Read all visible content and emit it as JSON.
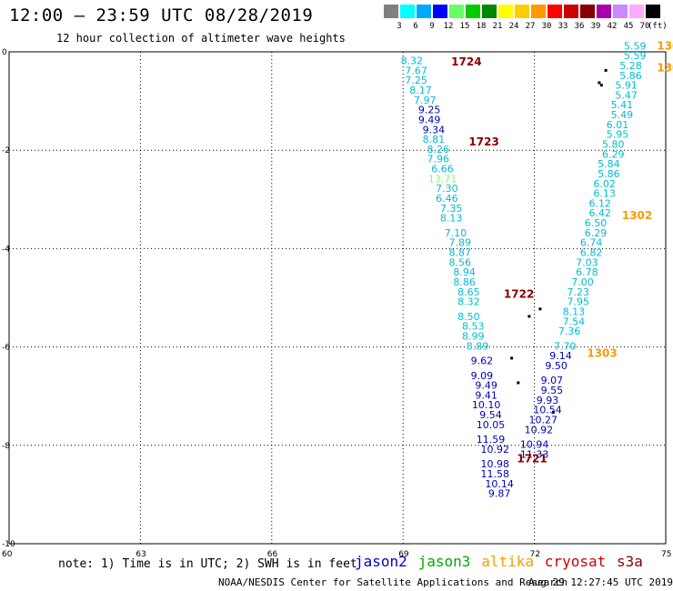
{
  "title": "12:00 – 23:59 UTC 08/28/2019",
  "subtitle": "12 hour collection of altimeter wave heights",
  "legend": {
    "unit": "(ft)",
    "swatches": [
      {
        "color": "#808080",
        "label": "3"
      },
      {
        "color": "#00ffff",
        "label": "6"
      },
      {
        "color": "#00a8ff",
        "label": "9"
      },
      {
        "color": "#0000ff",
        "label": "12"
      },
      {
        "color": "#66ff66",
        "label": "15"
      },
      {
        "color": "#00cc00",
        "label": "18"
      },
      {
        "color": "#008800",
        "label": "21"
      },
      {
        "color": "#ffff00",
        "label": "24"
      },
      {
        "color": "#ffcc00",
        "label": "27"
      },
      {
        "color": "#ff9900",
        "label": "30"
      },
      {
        "color": "#ff0000",
        "label": "33"
      },
      {
        "color": "#cc0000",
        "label": "36"
      },
      {
        "color": "#880000",
        "label": "39"
      },
      {
        "color": "#aa00aa",
        "label": "42"
      },
      {
        "color": "#cc88ff",
        "label": "45"
      },
      {
        "color": "#ffaaff",
        "label": "70"
      },
      {
        "color": "#000000",
        "label": ""
      }
    ]
  },
  "axes": {
    "lon_ticks": [
      60,
      63,
      66,
      69,
      72,
      75
    ],
    "lat_ticks": [
      0,
      -2,
      -4,
      -6,
      -8,
      -10
    ]
  },
  "colors": {
    "light": "#00bcd4",
    "dark": "#0000b4",
    "green": "#80ff66",
    "time_dark": "#880000",
    "time_orange": "#ff9900"
  },
  "tracks": [
    {
      "name": "track-west",
      "values": [
        {
          "lon": 69.2,
          "lat": -0.25,
          "v": "8.32",
          "c": "light"
        },
        {
          "lon": 69.3,
          "lat": -0.45,
          "v": "7.67",
          "c": "light"
        },
        {
          "lon": 69.3,
          "lat": -0.65,
          "v": "7.25",
          "c": "light"
        },
        {
          "lon": 69.4,
          "lat": -0.85,
          "v": "8.17",
          "c": "light"
        },
        {
          "lon": 69.5,
          "lat": -1.05,
          "v": "7.97",
          "c": "light"
        },
        {
          "lon": 69.6,
          "lat": -1.25,
          "v": "9.25",
          "c": "dark"
        },
        {
          "lon": 69.6,
          "lat": -1.45,
          "v": "9.49",
          "c": "dark"
        },
        {
          "lon": 69.7,
          "lat": -1.65,
          "v": "9.34",
          "c": "dark"
        },
        {
          "lon": 69.7,
          "lat": -1.85,
          "v": "8.81",
          "c": "light"
        },
        {
          "lon": 69.8,
          "lat": -2.05,
          "v": "8.26",
          "c": "light"
        },
        {
          "lon": 69.8,
          "lat": -2.25,
          "v": "7.96",
          "c": "light"
        },
        {
          "lon": 69.9,
          "lat": -2.45,
          "v": "6.66",
          "c": "light"
        },
        {
          "lon": 69.9,
          "lat": -2.65,
          "v": "13.71",
          "c": "green"
        },
        {
          "lon": 70.0,
          "lat": -2.85,
          "v": "7.30",
          "c": "light"
        },
        {
          "lon": 70.0,
          "lat": -3.05,
          "v": "6.46",
          "c": "light"
        },
        {
          "lon": 70.1,
          "lat": -3.25,
          "v": "7.35",
          "c": "light"
        },
        {
          "lon": 70.1,
          "lat": -3.45,
          "v": "8.13",
          "c": "light"
        },
        {
          "lon": 70.2,
          "lat": -3.75,
          "v": "7.10",
          "c": "light"
        },
        {
          "lon": 70.3,
          "lat": -3.95,
          "v": "7.89",
          "c": "light"
        },
        {
          "lon": 70.3,
          "lat": -4.15,
          "v": "8.87",
          "c": "light"
        },
        {
          "lon": 70.3,
          "lat": -4.35,
          "v": "8.56",
          "c": "light"
        },
        {
          "lon": 70.4,
          "lat": -4.55,
          "v": "8.94",
          "c": "light"
        },
        {
          "lon": 70.4,
          "lat": -4.75,
          "v": "8.86",
          "c": "light"
        },
        {
          "lon": 70.5,
          "lat": -4.95,
          "v": "8.65",
          "c": "light"
        },
        {
          "lon": 70.5,
          "lat": -5.15,
          "v": "8.32",
          "c": "light"
        },
        {
          "lon": 70.5,
          "lat": -5.45,
          "v": "8.50",
          "c": "light"
        },
        {
          "lon": 70.6,
          "lat": -5.65,
          "v": "8.53",
          "c": "light"
        },
        {
          "lon": 70.6,
          "lat": -5.85,
          "v": "8.99",
          "c": "light"
        },
        {
          "lon": 70.7,
          "lat": -6.05,
          "v": "8.89",
          "c": "light"
        },
        {
          "lon": 70.8,
          "lat": -6.35,
          "v": "9.62",
          "c": "dark"
        },
        {
          "lon": 70.8,
          "lat": -6.65,
          "v": "9.09",
          "c": "dark"
        },
        {
          "lon": 70.9,
          "lat": -6.85,
          "v": "9.49",
          "c": "dark"
        },
        {
          "lon": 70.9,
          "lat": -7.05,
          "v": "9.41",
          "c": "dark"
        },
        {
          "lon": 70.9,
          "lat": -7.25,
          "v": "10.10",
          "c": "dark"
        },
        {
          "lon": 71.0,
          "lat": -7.45,
          "v": "9.54",
          "c": "dark"
        },
        {
          "lon": 71.0,
          "lat": -7.65,
          "v": "10.05",
          "c": "dark"
        },
        {
          "lon": 71.0,
          "lat": -7.95,
          "v": "11.59",
          "c": "dark"
        },
        {
          "lon": 71.1,
          "lat": -8.15,
          "v": "10.92",
          "c": "dark"
        },
        {
          "lon": 71.1,
          "lat": -8.45,
          "v": "10.98",
          "c": "dark"
        },
        {
          "lon": 71.1,
          "lat": -8.65,
          "v": "11.58",
          "c": "dark"
        },
        {
          "lon": 71.2,
          "lat": -8.85,
          "v": "10.14",
          "c": "dark"
        },
        {
          "lon": 71.2,
          "lat": -9.05,
          "v": "9.87",
          "c": "dark"
        }
      ]
    },
    {
      "name": "track-east",
      "values": [
        {
          "lon": 74.3,
          "lat": 0.05,
          "v": "5.59",
          "c": "light"
        },
        {
          "lon": 74.3,
          "lat": -0.15,
          "v": "5.59",
          "c": "light"
        },
        {
          "lon": 74.2,
          "lat": -0.35,
          "v": "5.28",
          "c": "light"
        },
        {
          "lon": 74.2,
          "lat": -0.55,
          "v": "5.86",
          "c": "light"
        },
        {
          "lon": 74.1,
          "lat": -0.75,
          "v": "5.91",
          "c": "light"
        },
        {
          "lon": 74.1,
          "lat": -0.95,
          "v": "5.47",
          "c": "light"
        },
        {
          "lon": 74.0,
          "lat": -1.15,
          "v": "5.41",
          "c": "light"
        },
        {
          "lon": 74.0,
          "lat": -1.35,
          "v": "5.49",
          "c": "light"
        },
        {
          "lon": 73.9,
          "lat": -1.55,
          "v": "6.01",
          "c": "light"
        },
        {
          "lon": 73.9,
          "lat": -1.75,
          "v": "5.95",
          "c": "light"
        },
        {
          "lon": 73.8,
          "lat": -1.95,
          "v": "5.80",
          "c": "light"
        },
        {
          "lon": 73.8,
          "lat": -2.15,
          "v": "6.29",
          "c": "light"
        },
        {
          "lon": 73.7,
          "lat": -2.35,
          "v": "5.84",
          "c": "light"
        },
        {
          "lon": 73.7,
          "lat": -2.55,
          "v": "5.86",
          "c": "light"
        },
        {
          "lon": 73.6,
          "lat": -2.75,
          "v": "6.02",
          "c": "light"
        },
        {
          "lon": 73.6,
          "lat": -2.95,
          "v": "6.13",
          "c": "light"
        },
        {
          "lon": 73.5,
          "lat": -3.15,
          "v": "6.12",
          "c": "light"
        },
        {
          "lon": 73.5,
          "lat": -3.35,
          "v": "6.42",
          "c": "light"
        },
        {
          "lon": 73.4,
          "lat": -3.55,
          "v": "6.50",
          "c": "light"
        },
        {
          "lon": 73.4,
          "lat": -3.75,
          "v": "6.29",
          "c": "light"
        },
        {
          "lon": 73.3,
          "lat": -3.95,
          "v": "6.74",
          "c": "light"
        },
        {
          "lon": 73.3,
          "lat": -4.15,
          "v": "6.82",
          "c": "light"
        },
        {
          "lon": 73.2,
          "lat": -4.35,
          "v": "7.03",
          "c": "light"
        },
        {
          "lon": 73.2,
          "lat": -4.55,
          "v": "6.78",
          "c": "light"
        },
        {
          "lon": 73.1,
          "lat": -4.75,
          "v": "7.00",
          "c": "light"
        },
        {
          "lon": 73.0,
          "lat": -4.95,
          "v": "7.23",
          "c": "light"
        },
        {
          "lon": 73.0,
          "lat": -5.15,
          "v": "7.95",
          "c": "light"
        },
        {
          "lon": 72.9,
          "lat": -5.35,
          "v": "8.13",
          "c": "light"
        },
        {
          "lon": 72.9,
          "lat": -5.55,
          "v": "7.54",
          "c": "light"
        },
        {
          "lon": 72.8,
          "lat": -5.75,
          "v": "7.36",
          "c": "light"
        },
        {
          "lon": 72.7,
          "lat": -6.05,
          "v": "7.70",
          "c": "light"
        },
        {
          "lon": 72.6,
          "lat": -6.25,
          "v": "9.14",
          "c": "dark"
        },
        {
          "lon": 72.5,
          "lat": -6.45,
          "v": "9.50",
          "c": "dark"
        },
        {
          "lon": 72.4,
          "lat": -6.75,
          "v": "9.07",
          "c": "dark"
        },
        {
          "lon": 72.4,
          "lat": -6.95,
          "v": "9.55",
          "c": "dark"
        },
        {
          "lon": 72.3,
          "lat": -7.15,
          "v": "9.93",
          "c": "dark"
        },
        {
          "lon": 72.3,
          "lat": -7.35,
          "v": "10.54",
          "c": "dark"
        },
        {
          "lon": 72.2,
          "lat": -7.55,
          "v": "10.27",
          "c": "dark"
        },
        {
          "lon": 72.1,
          "lat": -7.75,
          "v": "10.92",
          "c": "dark"
        },
        {
          "lon": 72.0,
          "lat": -8.05,
          "v": "10.94",
          "c": "dark"
        },
        {
          "lon": 72.0,
          "lat": -8.25,
          "v": "11.33",
          "c": "dark"
        }
      ]
    }
  ],
  "time_labels": [
    {
      "lon": 70.1,
      "lat": -0.28,
      "text": "1724",
      "c": "time_dark"
    },
    {
      "lon": 70.5,
      "lat": -1.9,
      "text": "1723",
      "c": "time_dark"
    },
    {
      "lon": 71.3,
      "lat": -5.0,
      "text": "1722",
      "c": "time_dark"
    },
    {
      "lon": 71.6,
      "lat": -8.35,
      "text": "1721",
      "c": "time_dark"
    },
    {
      "lon": 74.8,
      "lat": 0.05,
      "text": "130",
      "c": "time_orange"
    },
    {
      "lon": 74.8,
      "lat": -0.4,
      "text": "130",
      "c": "time_orange"
    },
    {
      "lon": 74.0,
      "lat": -3.4,
      "text": "1302",
      "c": "time_orange"
    },
    {
      "lon": 73.2,
      "lat": -6.2,
      "text": "1303",
      "c": "time_orange"
    }
  ],
  "note": "note: 1) Time is in UTC; 2) SWH is in feet",
  "satellites": [
    {
      "name": "jason2",
      "color": "#0000cc"
    },
    {
      "name": "jason3",
      "color": "#00aa00"
    },
    {
      "name": "altika",
      "color": "#ff9900"
    },
    {
      "name": "cryosat",
      "color": "#cc0000"
    },
    {
      "name": "s3a",
      "color": "#880000"
    }
  ],
  "footer_left": "NOAA/NESDIS Center for Satellite Applications and Research",
  "footer_right": "Aug 29 12:27:45 UTC 2019"
}
